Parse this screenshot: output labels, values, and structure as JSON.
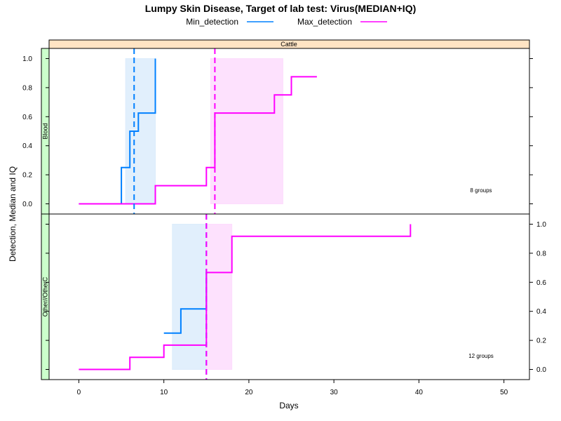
{
  "chart_data": {
    "type": "line",
    "title": "Lumpy Skin Disease, Target of lab test: Virus(MEDIAN+IQ)",
    "xlabel": "Days",
    "ylabel": "Detection, Median and IQ",
    "xlim": [
      -3.5,
      53
    ],
    "xticks": [
      "0",
      "10",
      "20",
      "30",
      "40",
      "50"
    ],
    "legend": {
      "position": "top",
      "entries": [
        {
          "name": "Min_detection",
          "color": "#0080ff"
        },
        {
          "name": "Max_detection",
          "color": "#ff00ff"
        }
      ]
    },
    "column_strip": "Cattle",
    "colors": {
      "min": "#0080ff",
      "max": "#ff00ff",
      "min_band": "#dcecfb",
      "max_band": "#fddcfd",
      "strip_top": "#ffe4c4",
      "strip_side": "#ccffcc"
    },
    "panels": [
      {
        "row_label": "Blood",
        "note": "8 groups",
        "ylim": [
          -0.07,
          1.07
        ],
        "yticks": [
          "0.0",
          "0.2",
          "0.4",
          "0.6",
          "0.8",
          "1.0"
        ],
        "series": [
          {
            "name": "Min_detection",
            "x": [
              0,
              5,
              5,
              6,
              6,
              7,
              7,
              9,
              9
            ],
            "y": [
              0,
              0,
              0.25,
              0.25,
              0.5,
              0.5,
              0.625,
              0.625,
              1.0
            ]
          },
          {
            "name": "Max_detection",
            "x": [
              0,
              9,
              9,
              15,
              15,
              16,
              16,
              23,
              23,
              25,
              25,
              28
            ],
            "y": [
              0,
              0,
              0.125,
              0.125,
              0.25,
              0.25,
              0.625,
              0.625,
              0.75,
              0.75,
              0.875,
              0.875
            ]
          }
        ],
        "iqr": [
          {
            "series": "Min_detection",
            "x": [
              5.5,
              9
            ]
          },
          {
            "series": "Max_detection",
            "x": [
              15.5,
              24
            ]
          }
        ],
        "medians": [
          {
            "series": "Min_detection",
            "x": 6.5
          },
          {
            "series": "Max_detection",
            "x": 16
          }
        ]
      },
      {
        "row_label": "Other//OtherC",
        "note": "12 groups",
        "ylim": [
          -0.07,
          1.07
        ],
        "yticks": [
          "0.0",
          "0.2",
          "0.4",
          "0.6",
          "0.8",
          "1.0"
        ],
        "series": [
          {
            "name": "Min_detection",
            "x": [
              10,
              12,
              12,
              15,
              15
            ],
            "y": [
              0.25,
              0.25,
              0.417,
              0.417,
              0.667
            ]
          },
          {
            "name": "Max_detection",
            "x": [
              0,
              6,
              6,
              10,
              10,
              15,
              15,
              18,
              18,
              39,
              39
            ],
            "y": [
              0,
              0,
              0.083,
              0.083,
              0.167,
              0.167,
              0.667,
              0.667,
              0.917,
              0.917,
              1.0
            ]
          }
        ],
        "iqr": [
          {
            "series": "Min_detection",
            "x": [
              11,
              15
            ]
          },
          {
            "series": "Max_detection",
            "x": [
              15,
              18
            ]
          }
        ],
        "medians": [
          {
            "series": "Min_detection",
            "x": 15
          },
          {
            "series": "Max_detection",
            "x": 15
          }
        ]
      }
    ]
  }
}
